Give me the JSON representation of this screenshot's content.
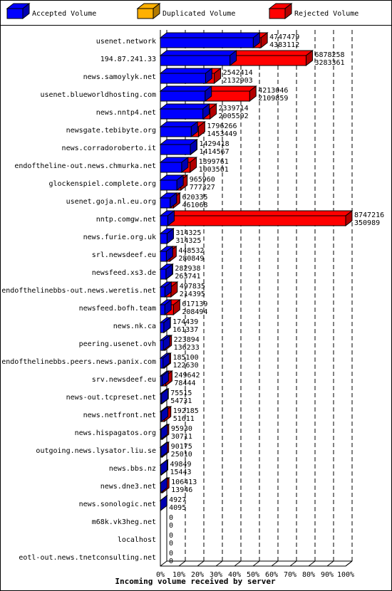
{
  "chart_data": {
    "type": "bar3d",
    "x_label": "Incoming volume received by server",
    "categories": [
      "usenet.network",
      "194.87.241.33",
      "news.samoylyk.net",
      "usenet.blueworldhosting.com",
      "news.nntp4.net",
      "newsgate.tebibyte.org",
      "news.corradoroberto.it",
      "endoftheline-out.news.chmurka.net",
      "glockenspiel.complete.org",
      "usenet.goja.nl.eu.org",
      "nntp.comgw.net",
      "news.furie.org.uk",
      "srl.newsdeef.eu",
      "newsfeed.xs3.de",
      "endofthelinebbs-out.news.weretis.net",
      "newsfeed.bofh.team",
      "news.nk.ca",
      "peering.usenet.ovh",
      "endofthelinebbs.peers.news.panix.com",
      "srv.newsdeef.eu",
      "news-out.tcpreset.net",
      "news.netfront.net",
      "news.hispagatos.org",
      "outgoing.news.lysator.liu.se",
      "news.bbs.nz",
      "news.dne3.net",
      "news.sonologic.net",
      "m68k.vk3heg.net",
      "localhost",
      "eotl-out.news.tnetconsulting.net"
    ],
    "totals": [
      4747479,
      6878258,
      2542414,
      4213046,
      2339714,
      1796266,
      1429418,
      1399761,
      965960,
      620335,
      8747216,
      314325,
      448532,
      282938,
      497835,
      617139,
      174439,
      223894,
      185100,
      249642,
      75515,
      192185,
      95930,
      90175,
      49849,
      106413,
      4927,
      0,
      0,
      0
    ],
    "series": [
      {
        "name": "Accepted Volume",
        "color": "#0000ff",
        "values": [
          4383112,
          3283361,
          2132903,
          2109859,
          2005592,
          1453449,
          1414567,
          1003501,
          777327,
          461068,
          350989,
          314325,
          280849,
          263741,
          214395,
          208494,
          161337,
          136233,
          122630,
          78444,
          54731,
          51611,
          30711,
          25010,
          15443,
          13946,
          4095,
          0,
          0,
          0
        ]
      },
      {
        "name": "Duplicated Volume",
        "color": "#ffb000",
        "values": [
          0,
          0,
          0,
          0,
          0,
          0,
          0,
          0,
          0,
          0,
          0,
          0,
          0,
          0,
          0,
          0,
          0,
          0,
          0,
          0,
          0,
          0,
          0,
          0,
          0,
          0,
          0,
          0,
          0,
          0
        ]
      },
      {
        "name": "Rejected Volume",
        "color": "#ff0000"
      }
    ],
    "xlim": [
      0,
      8747216
    ],
    "xticks": [
      {
        "value": 0,
        "label": "0%"
      },
      {
        "value": 874721.6,
        "label": "10%"
      },
      {
        "value": 1749443.2,
        "label": "20%"
      },
      {
        "value": 2624164.8,
        "label": "30%"
      },
      {
        "value": 3498886.4,
        "label": "40%"
      },
      {
        "value": 4373608,
        "label": "50%"
      },
      {
        "value": 5248329.6,
        "label": "60%"
      },
      {
        "value": 6123051.2,
        "label": "70%"
      },
      {
        "value": 6997772.8,
        "label": "80%"
      },
      {
        "value": 7872494.4,
        "label": "90%"
      },
      {
        "value": 8747216,
        "label": "100%"
      }
    ],
    "grid": true
  }
}
